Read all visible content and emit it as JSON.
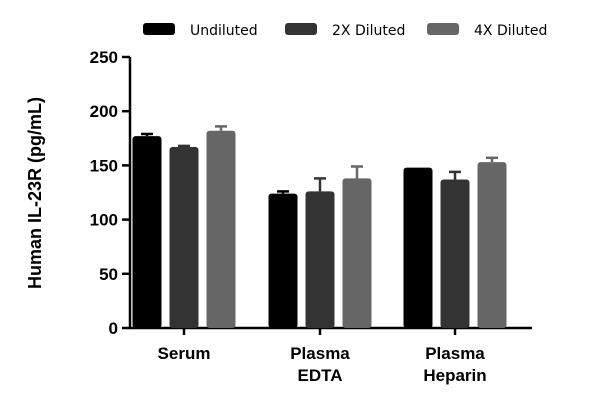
{
  "chart_data": {
    "type": "bar",
    "title": "",
    "xlabel": "",
    "ylabel": "Human IL-23R (pg/mL)",
    "ylim": [
      0,
      250
    ],
    "yticks": [
      0,
      50,
      100,
      150,
      200,
      250
    ],
    "categories": [
      [
        "Serum"
      ],
      [
        "Plasma",
        "EDTA"
      ],
      [
        "Plasma",
        "Heparin"
      ]
    ],
    "series": [
      {
        "name": "Undiluted",
        "color": "#000000",
        "values": [
          177,
          124,
          148
        ],
        "errors": [
          2,
          2,
          0
        ]
      },
      {
        "name": "2X Diluted",
        "color": "#333333",
        "values": [
          167,
          126,
          137
        ],
        "errors": [
          1,
          12,
          7
        ]
      },
      {
        "name": "4X Diluted",
        "color": "#666666",
        "values": [
          182,
          138,
          153
        ],
        "errors": [
          4,
          11,
          4
        ]
      }
    ],
    "legend_position": "top",
    "grid": false
  }
}
